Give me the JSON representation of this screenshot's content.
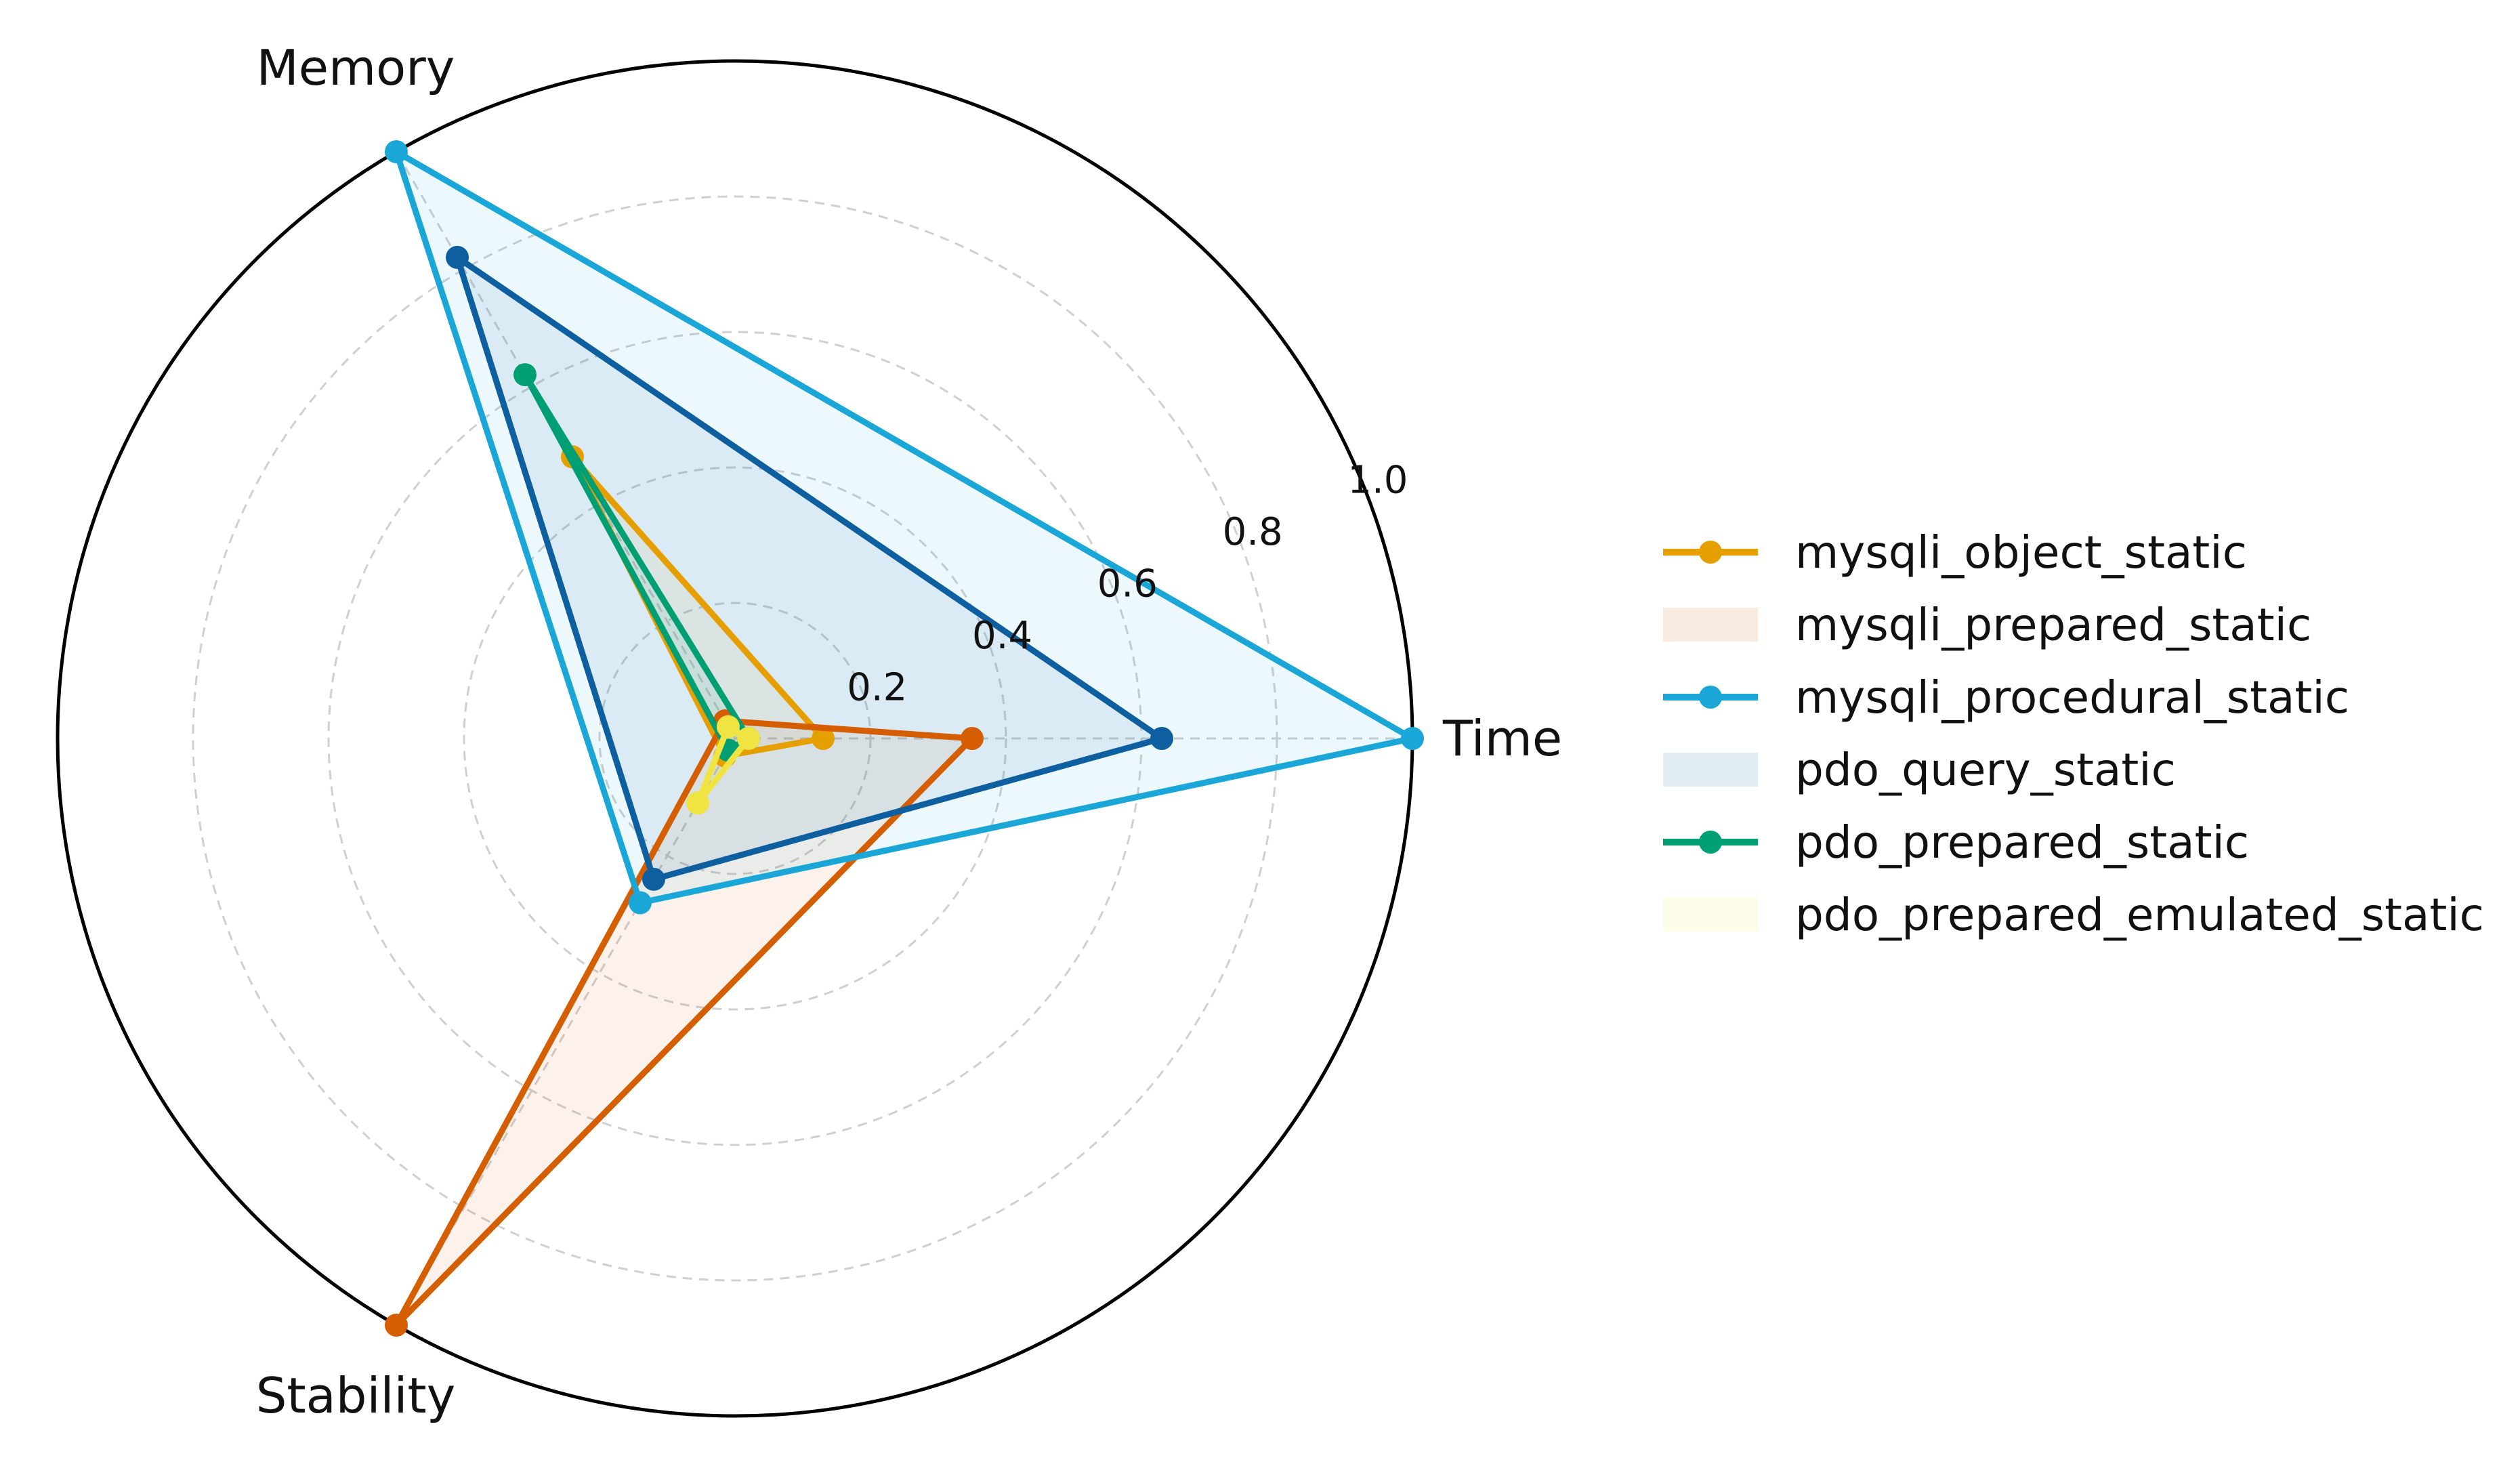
{
  "chart_data": {
    "type": "radar",
    "axes": [
      "Time",
      "Memory",
      "Stability"
    ],
    "rlim": [
      0,
      1.0
    ],
    "r_ticks": [
      0.2,
      0.4,
      0.6,
      0.8,
      1.0
    ],
    "r_tick_labels": [
      "0.2",
      "0.4",
      "0.6",
      "0.8",
      "1.0"
    ],
    "grid": true,
    "legend_position": "right",
    "series": [
      {
        "name": "mysqli_object_static",
        "color": "#E69F00",
        "style": "line",
        "values": [
          0.13,
          0.48,
          0.03
        ]
      },
      {
        "name": "mysqli_prepared_static",
        "color": "#D55E00",
        "style": "fill",
        "values": [
          0.35,
          0.03,
          1.0
        ]
      },
      {
        "name": "mysqli_procedural_static",
        "color": "#1AA7D8",
        "style": "line",
        "values": [
          1.0,
          1.0,
          0.28
        ]
      },
      {
        "name": "pdo_query_static",
        "color": "#0E5FA0",
        "style": "fill",
        "values": [
          0.63,
          0.82,
          0.24
        ]
      },
      {
        "name": "pdo_prepared_static",
        "color": "#009E73",
        "style": "line",
        "values": [
          0.02,
          0.62,
          0.02
        ]
      },
      {
        "name": "pdo_prepared_emulated_static",
        "color": "#F0E442",
        "style": "fill",
        "values": [
          0.02,
          0.02,
          0.11
        ]
      }
    ]
  }
}
